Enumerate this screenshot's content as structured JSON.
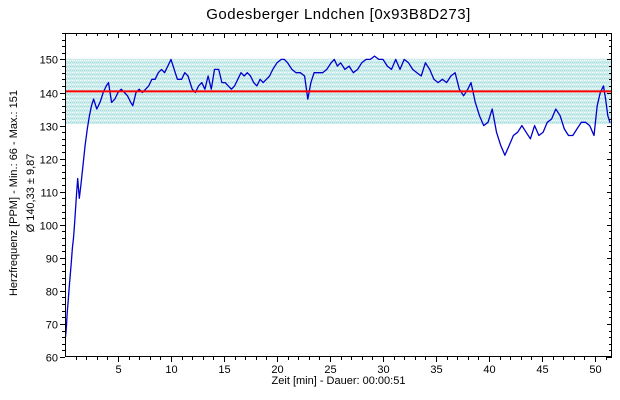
{
  "window": {
    "title": "Godesberger Lndchen [0x93B8D273]",
    "background": "#ffffff"
  },
  "chart_data": {
    "type": "line",
    "title": "Godesberger Lndchen [0x93B8D273]",
    "xlabel": "Zeit [min] - Dauer: 00:00:51",
    "ylabel_line1": "Herzfrequenz [PPM] - Min.: 66 - Max.: 151",
    "ylabel_line2": "Ø 140,33 ± 9,87",
    "stats": {
      "min": 66,
      "max": 151,
      "mean": 140.33,
      "std": 9.87,
      "duration": "00:00:51"
    },
    "xlim": [
      0,
      51.6
    ],
    "ylim": [
      60,
      158
    ],
    "x_major_ticks": [
      5,
      10,
      15,
      20,
      25,
      30,
      35,
      40,
      45,
      50
    ],
    "x_minor_step": 1,
    "y_major_ticks": [
      60,
      70,
      80,
      90,
      100,
      110,
      120,
      130,
      140,
      150
    ],
    "y_minor_step": 2,
    "grid": false,
    "legend": false,
    "band": {
      "low": 130.46,
      "high": 150.2,
      "base_color": "#cdecec",
      "dot_color": "#a9dcdf"
    },
    "mean_line": {
      "value": 140.33,
      "color": "#ff0000"
    },
    "frame_color": "#000000",
    "series": [
      {
        "name": "Herzfrequenz",
        "color": "#0000cc",
        "points": [
          [
            0.05,
            66
          ],
          [
            0.1,
            68
          ],
          [
            0.15,
            70
          ],
          [
            0.2,
            73
          ],
          [
            0.3,
            77
          ],
          [
            0.4,
            81
          ],
          [
            0.5,
            85
          ],
          [
            0.6,
            89
          ],
          [
            0.7,
            93
          ],
          [
            0.8,
            96
          ],
          [
            0.9,
            100
          ],
          [
            1.0,
            105
          ],
          [
            1.1,
            110
          ],
          [
            1.2,
            114
          ],
          [
            1.35,
            108
          ],
          [
            1.5,
            112
          ],
          [
            1.7,
            118
          ],
          [
            1.9,
            124
          ],
          [
            2.1,
            129
          ],
          [
            2.3,
            133
          ],
          [
            2.5,
            136
          ],
          [
            2.7,
            138
          ],
          [
            3.0,
            135
          ],
          [
            3.3,
            137
          ],
          [
            3.6,
            140
          ],
          [
            3.9,
            142
          ],
          [
            4.1,
            143
          ],
          [
            4.4,
            137
          ],
          [
            4.7,
            138
          ],
          [
            5.0,
            140
          ],
          [
            5.3,
            141
          ],
          [
            5.6,
            140
          ],
          [
            5.9,
            139
          ],
          [
            6.2,
            137
          ],
          [
            6.4,
            136
          ],
          [
            6.7,
            140
          ],
          [
            7.0,
            141
          ],
          [
            7.3,
            140
          ],
          [
            7.6,
            141
          ],
          [
            7.9,
            142
          ],
          [
            8.2,
            144
          ],
          [
            8.5,
            144
          ],
          [
            8.8,
            146
          ],
          [
            9.1,
            147
          ],
          [
            9.4,
            146
          ],
          [
            9.7,
            148
          ],
          [
            10.0,
            150
          ],
          [
            10.3,
            147
          ],
          [
            10.6,
            144
          ],
          [
            11.0,
            144
          ],
          [
            11.3,
            146
          ],
          [
            11.6,
            145
          ],
          [
            12.0,
            141
          ],
          [
            12.3,
            140
          ],
          [
            12.6,
            142
          ],
          [
            12.9,
            143
          ],
          [
            13.2,
            141
          ],
          [
            13.5,
            145
          ],
          [
            13.8,
            141
          ],
          [
            14.1,
            147
          ],
          [
            14.5,
            147
          ],
          [
            14.8,
            143
          ],
          [
            15.1,
            143
          ],
          [
            15.4,
            142
          ],
          [
            15.7,
            141
          ],
          [
            16.0,
            142
          ],
          [
            16.3,
            144
          ],
          [
            16.6,
            146
          ],
          [
            16.9,
            145
          ],
          [
            17.2,
            146
          ],
          [
            17.5,
            145
          ],
          [
            17.8,
            143
          ],
          [
            18.1,
            142
          ],
          [
            18.4,
            144
          ],
          [
            18.7,
            143
          ],
          [
            19.0,
            144
          ],
          [
            19.3,
            145
          ],
          [
            19.6,
            147
          ],
          [
            20.0,
            149
          ],
          [
            20.4,
            150
          ],
          [
            20.7,
            150
          ],
          [
            21.0,
            149
          ],
          [
            21.4,
            147
          ],
          [
            21.8,
            146
          ],
          [
            22.2,
            146
          ],
          [
            22.6,
            145
          ],
          [
            22.9,
            138
          ],
          [
            23.2,
            143
          ],
          [
            23.5,
            146
          ],
          [
            23.9,
            146
          ],
          [
            24.3,
            146
          ],
          [
            24.7,
            147
          ],
          [
            25.1,
            149
          ],
          [
            25.4,
            150
          ],
          [
            25.7,
            148
          ],
          [
            26.0,
            149
          ],
          [
            26.4,
            147
          ],
          [
            26.8,
            148
          ],
          [
            27.2,
            146
          ],
          [
            27.6,
            147
          ],
          [
            28.0,
            149
          ],
          [
            28.4,
            150
          ],
          [
            28.8,
            150
          ],
          [
            29.2,
            151
          ],
          [
            29.6,
            150
          ],
          [
            30.0,
            150
          ],
          [
            30.4,
            148
          ],
          [
            30.8,
            147
          ],
          [
            31.2,
            150
          ],
          [
            31.6,
            147
          ],
          [
            32.0,
            150
          ],
          [
            32.4,
            149
          ],
          [
            32.8,
            147
          ],
          [
            33.2,
            146
          ],
          [
            33.6,
            145
          ],
          [
            34.0,
            149
          ],
          [
            34.4,
            147
          ],
          [
            34.8,
            144
          ],
          [
            35.2,
            143
          ],
          [
            35.6,
            144
          ],
          [
            36.0,
            143
          ],
          [
            36.4,
            145
          ],
          [
            36.8,
            146
          ],
          [
            37.2,
            141
          ],
          [
            37.6,
            139
          ],
          [
            38.0,
            141
          ],
          [
            38.3,
            143
          ],
          [
            38.7,
            137
          ],
          [
            39.1,
            133
          ],
          [
            39.5,
            130
          ],
          [
            39.9,
            131
          ],
          [
            40.3,
            135
          ],
          [
            40.7,
            128
          ],
          [
            41.1,
            124
          ],
          [
            41.5,
            121
          ],
          [
            41.9,
            124
          ],
          [
            42.3,
            127
          ],
          [
            42.7,
            128
          ],
          [
            43.1,
            130
          ],
          [
            43.5,
            128
          ],
          [
            43.9,
            126
          ],
          [
            44.3,
            130
          ],
          [
            44.7,
            127
          ],
          [
            45.1,
            128
          ],
          [
            45.5,
            131
          ],
          [
            45.9,
            132
          ],
          [
            46.3,
            135
          ],
          [
            46.7,
            133
          ],
          [
            47.1,
            129
          ],
          [
            47.5,
            127
          ],
          [
            47.9,
            127
          ],
          [
            48.3,
            129
          ],
          [
            48.7,
            131
          ],
          [
            49.1,
            131
          ],
          [
            49.5,
            130
          ],
          [
            49.9,
            127
          ],
          [
            50.2,
            136
          ],
          [
            50.5,
            140
          ],
          [
            50.8,
            142
          ],
          [
            51.0,
            138
          ],
          [
            51.2,
            133
          ],
          [
            51.4,
            131
          ]
        ]
      }
    ]
  }
}
